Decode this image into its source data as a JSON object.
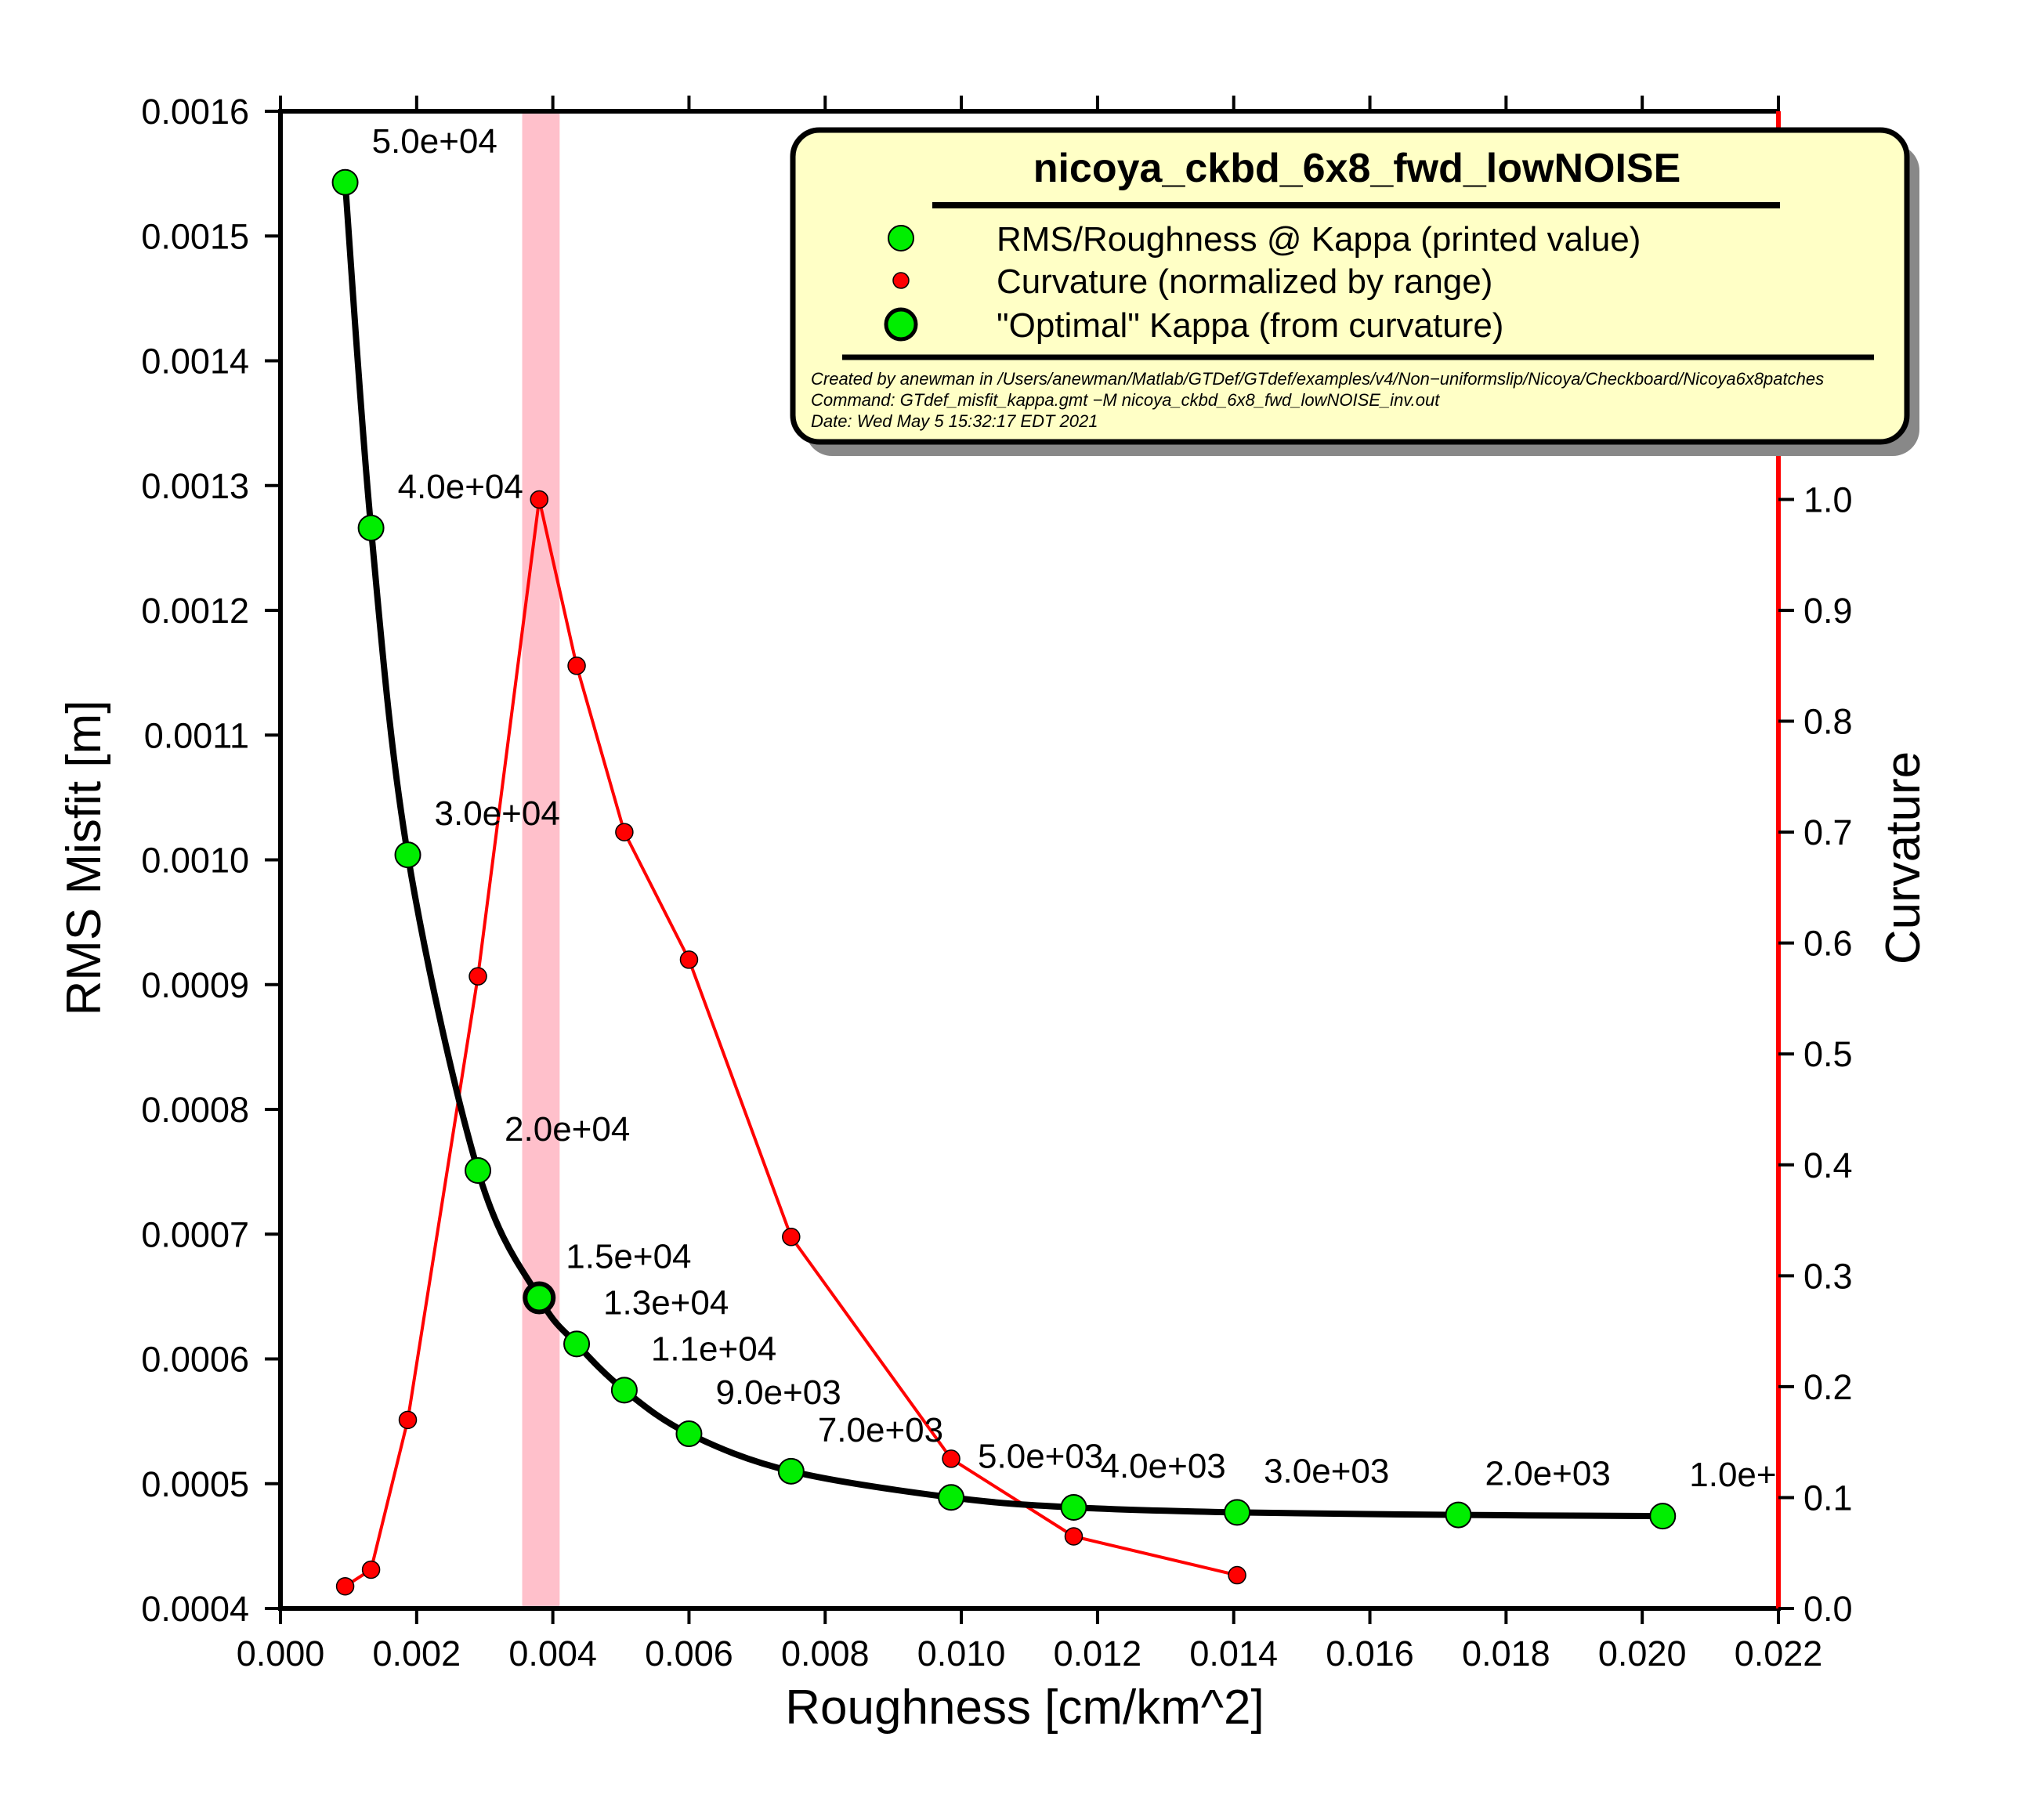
{
  "chart_data": {
    "type": "line",
    "title": "nicoya_ckbd_6x8_fwd_lowNOISE",
    "xlabel": "Roughness [cm/km^2]",
    "ylabel": "RMS Misfit [m]",
    "y2label": "Curvature",
    "xlim": [
      0.0,
      0.022
    ],
    "ylim": [
      0.0004,
      0.0016
    ],
    "y2lim": [
      0.0,
      1.35
    ],
    "x_ticks": [
      "0.000",
      "0.002",
      "0.004",
      "0.006",
      "0.008",
      "0.010",
      "0.012",
      "0.014",
      "0.016",
      "0.018",
      "0.020",
      "0.022"
    ],
    "y_ticks": [
      "0.0004",
      "0.0005",
      "0.0006",
      "0.0007",
      "0.0008",
      "0.0009",
      "0.0010",
      "0.0011",
      "0.0012",
      "0.0013",
      "0.0014",
      "0.0015",
      "0.0016"
    ],
    "y2_ticks": [
      "0.0",
      "0.1",
      "0.2",
      "0.3",
      "0.4",
      "0.5",
      "0.6",
      "0.7",
      "0.8",
      "0.9",
      "1.0"
    ],
    "highlight_band": [
      0.00355,
      0.0041
    ],
    "series": [
      {
        "name": "RMS/Roughness @ Kappa (printed value)",
        "color": "#00ee00",
        "x": [
          0.00095,
          0.00133,
          0.00187,
          0.0029,
          0.0038,
          0.00435,
          0.00505,
          0.006,
          0.0075,
          0.00985,
          0.01165,
          0.01405,
          0.0173,
          0.0203
        ],
        "y": [
          0.001543,
          0.001266,
          0.001004,
          0.000751,
          0.000649,
          0.000612,
          0.000575,
          0.00054,
          0.00051,
          0.000489,
          0.000481,
          0.000477,
          0.000475,
          0.000474
        ],
        "labels": [
          "5.0e+04",
          "4.0e+04",
          "3.0e+04",
          "2.0e+04",
          "1.5e+04",
          "1.3e+04",
          "1.1e+04",
          "9.0e+03",
          "7.0e+03",
          "5.0e+03",
          "4.0e+03",
          "3.0e+03",
          "2.0e+03",
          "1.0e+"
        ]
      },
      {
        "name": "Curvature (normalized by range)",
        "color": "#ff0000",
        "axis": "right",
        "x": [
          0.00095,
          0.00133,
          0.00187,
          0.0029,
          0.0038,
          0.00435,
          0.00505,
          0.006,
          0.0075,
          0.00985,
          0.01165,
          0.01405
        ],
        "y": [
          0.02,
          0.035,
          0.17,
          0.57,
          1.0,
          0.85,
          0.7,
          0.585,
          0.335,
          0.135,
          0.065,
          0.03
        ]
      }
    ],
    "optimal": {
      "name": "\"Optimal\" Kappa (from curvature)",
      "x": 0.0038,
      "y": 0.000649
    },
    "legend": {
      "position": "top-right",
      "title": "nicoya_ckbd_6x8_fwd_lowNOISE",
      "entries": [
        "RMS/Roughness @ Kappa (printed value)",
        "Curvature (normalized by range)",
        "\"Optimal\" Kappa (from curvature)"
      ],
      "meta": [
        "Created by anewman in /Users/anewman/Matlab/GTDef/GTdef/examples/v4/Non−uniformslip/Nicoya/Checkboard/Nicoya6x8patches",
        "Command: GTdef_misfit_kappa.gmt −M nicoya_ckbd_6x8_fwd_lowNOISE_inv.out",
        "Date: Wed May  5 15:32:17 EDT 2021"
      ]
    },
    "colors": {
      "rms_marker": "#00ee00",
      "curvature": "#ff0000",
      "band": "#ffc0cb",
      "legend_bg": "#ffffc6"
    }
  }
}
